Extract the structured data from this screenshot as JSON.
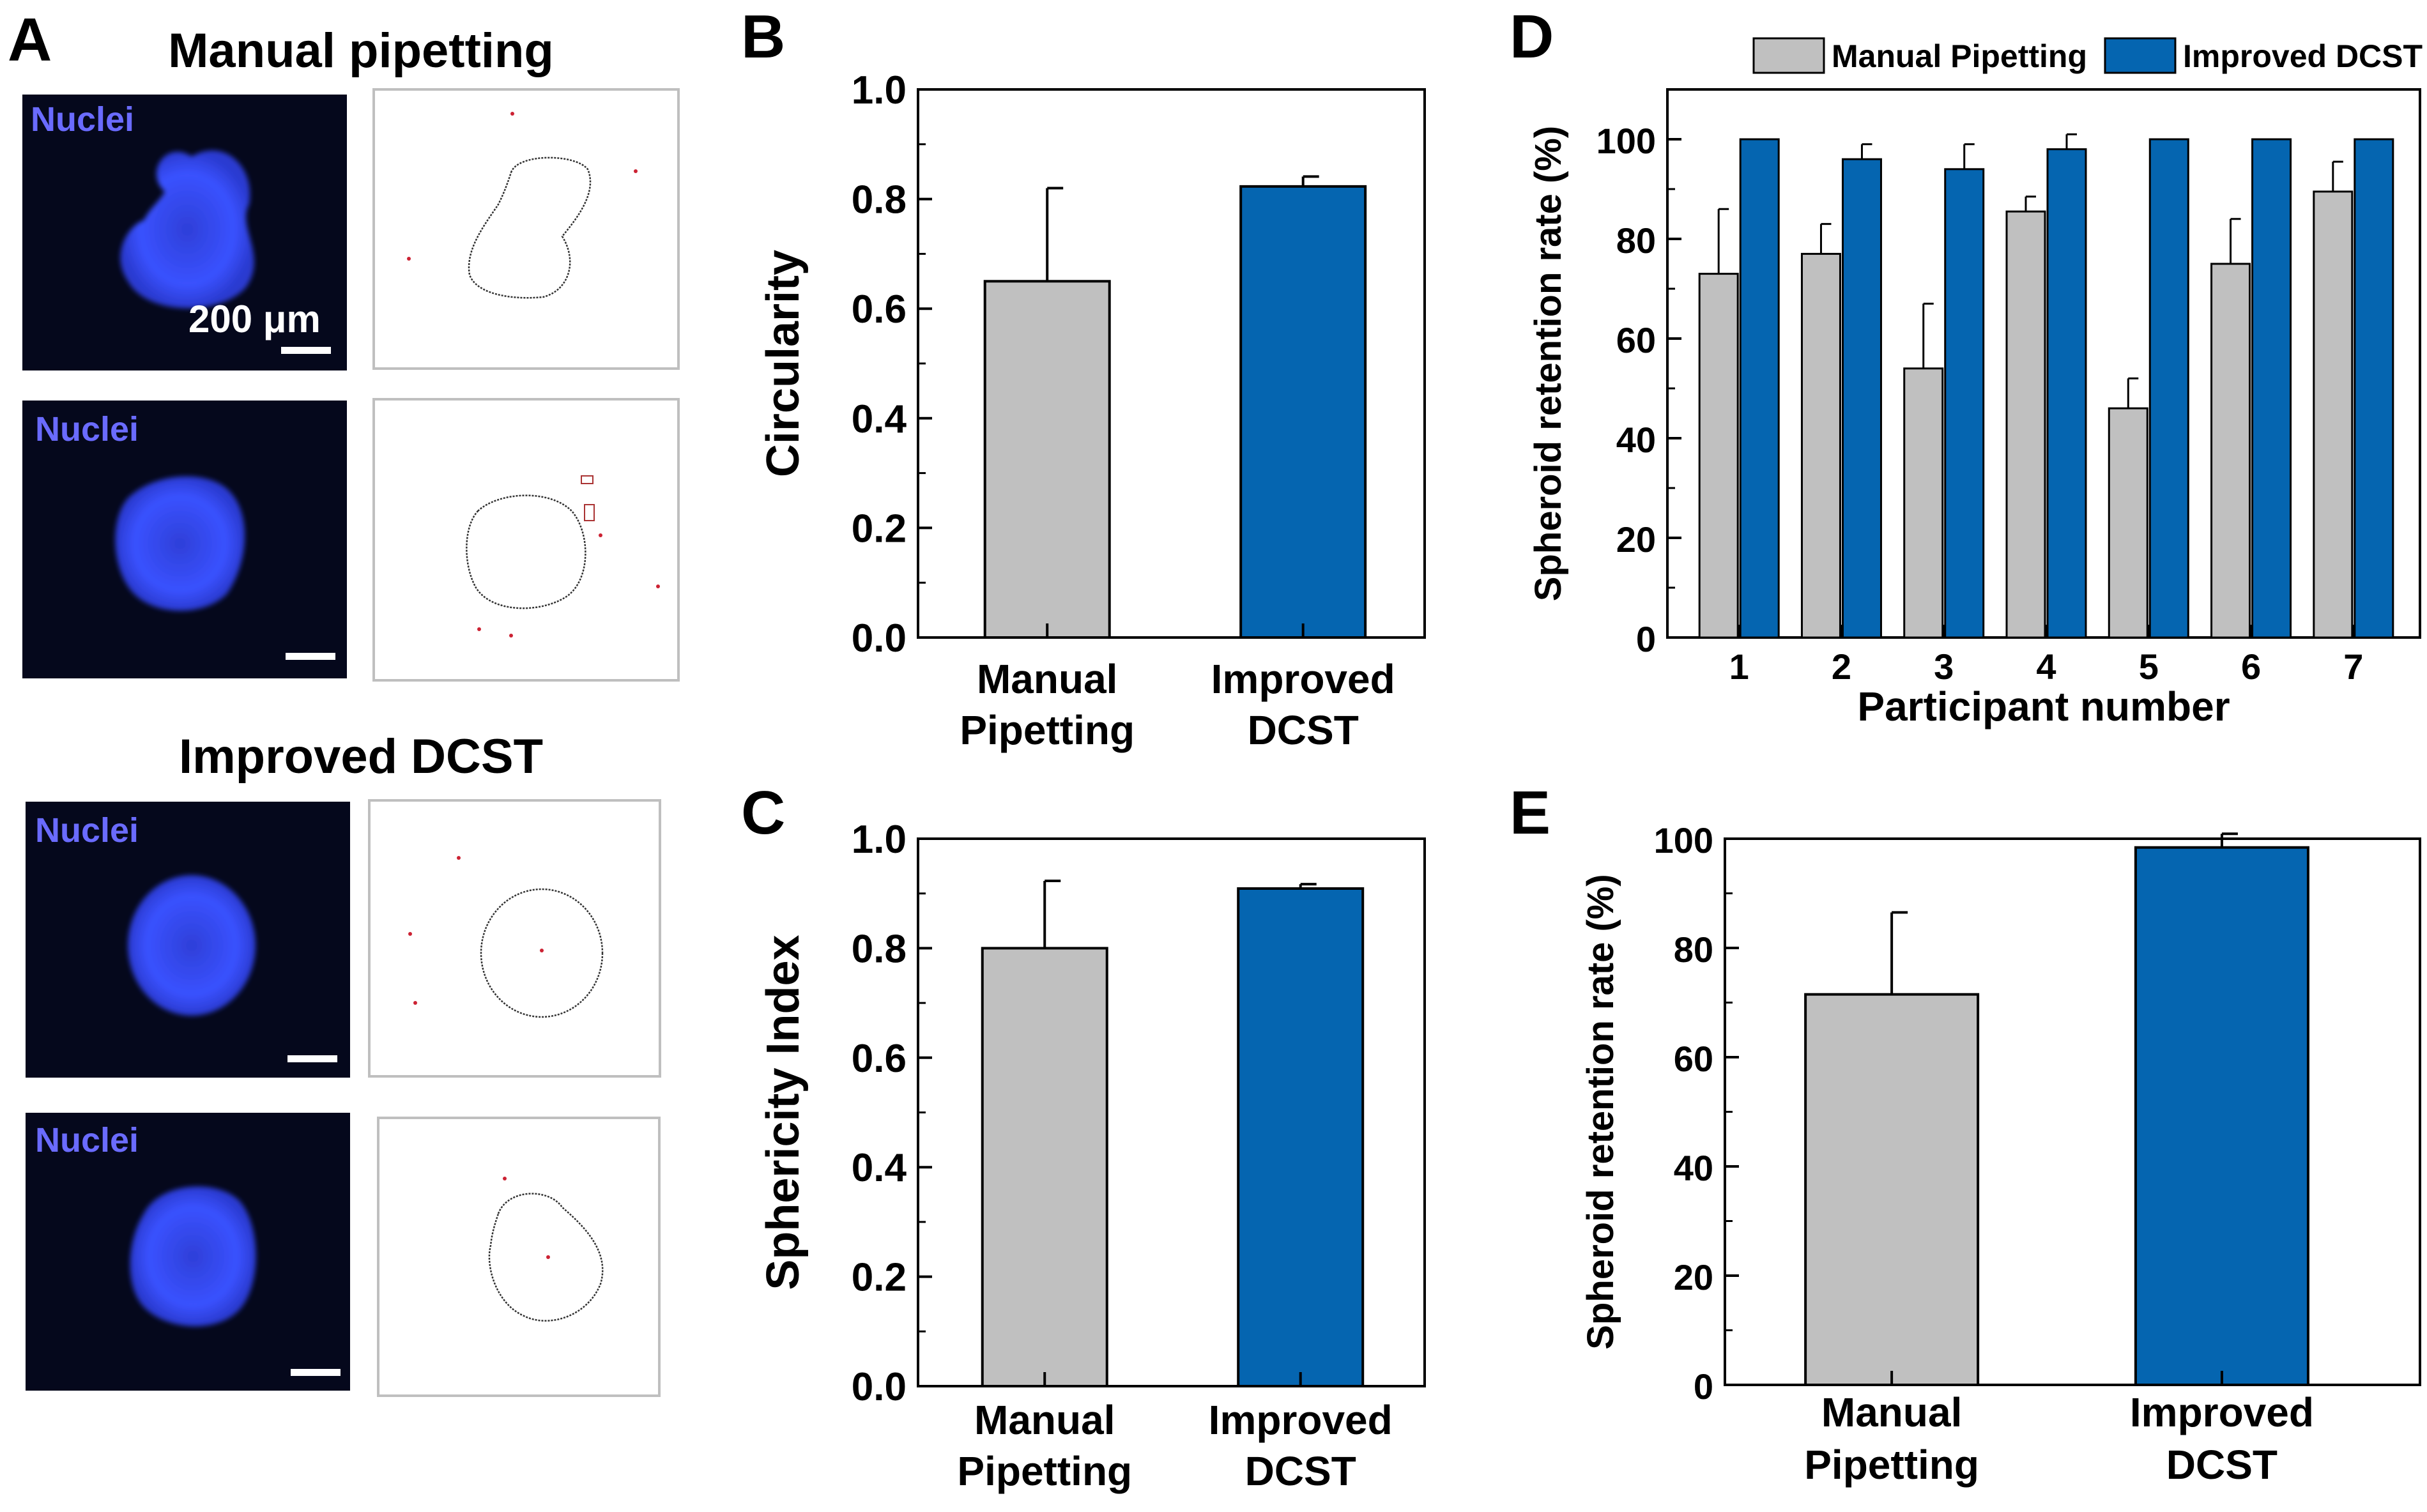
{
  "figure": {
    "panel_a": {
      "letter": "A",
      "section_manual": "Manual pipetting",
      "section_improved": "Improved DCST",
      "stain_label": "Nuclei",
      "scale_bar_label": "200 μm"
    }
  },
  "colors": {
    "manual": "#c0c0c0",
    "improved": "#0565b0",
    "nuclei_stain": "#2f43e6",
    "image_bg": "#05081c"
  },
  "chart_data": [
    {
      "id": "B",
      "letter": "B",
      "type": "bar",
      "categories": [
        "Manual\nPipetting",
        "Improved\nDCST"
      ],
      "category_lines": [
        [
          "Manual",
          "Pipetting"
        ],
        [
          "Improved",
          "DCST"
        ]
      ],
      "values": [
        0.65,
        0.823
      ],
      "errors": [
        0.17,
        0.018
      ],
      "ylabel": "Circularity",
      "ylim": [
        0,
        1.0
      ],
      "yticks": [
        "0.0",
        "0.2",
        "0.4",
        "0.6",
        "0.8",
        "1.0"
      ]
    },
    {
      "id": "C",
      "letter": "C",
      "type": "bar",
      "categories": [
        "Manual\nPipetting",
        "Improved\nDCST"
      ],
      "category_lines": [
        [
          "Manual",
          "Pipetting"
        ],
        [
          "Improved",
          "DCST"
        ]
      ],
      "values": [
        0.8,
        0.909
      ],
      "errors": [
        0.123,
        0.008
      ],
      "ylabel": "Sphericity Index",
      "ylim": [
        0,
        1.0
      ],
      "yticks": [
        "0.0",
        "0.2",
        "0.4",
        "0.6",
        "0.8",
        "1.0"
      ]
    },
    {
      "id": "D",
      "letter": "D",
      "type": "bar",
      "categories": [
        "1",
        "2",
        "3",
        "4",
        "5",
        "6",
        "7"
      ],
      "series": [
        {
          "name": "Manual Pipetting",
          "values": [
            73,
            77,
            54,
            85.5,
            46,
            75,
            89.5
          ],
          "errors": [
            13,
            6,
            13,
            3,
            6,
            9,
            6
          ]
        },
        {
          "name": "Improved DCST",
          "values": [
            100,
            96,
            94,
            98,
            100,
            100,
            100
          ],
          "errors": [
            0,
            3,
            5,
            3,
            0,
            0,
            0
          ]
        }
      ],
      "xlabel": "Participant number",
      "ylabel": "Spheroid retention rate (%)",
      "ylim": [
        0,
        110
      ],
      "yticks": [
        "0",
        "20",
        "40",
        "60",
        "80",
        "100"
      ]
    },
    {
      "id": "E",
      "letter": "E",
      "type": "bar",
      "categories": [
        "Manual\nPipetting",
        "Improved\nDCST"
      ],
      "category_lines": [
        [
          "Manual",
          "Pipetting"
        ],
        [
          "Improved",
          "DCST"
        ]
      ],
      "values": [
        71.5,
        98.4
      ],
      "errors": [
        15,
        2.5
      ],
      "ylabel": "Spheroid retention rate (%)",
      "ylim": [
        0,
        100
      ],
      "yticks": [
        "0",
        "20",
        "40",
        "60",
        "80",
        "100"
      ]
    }
  ]
}
